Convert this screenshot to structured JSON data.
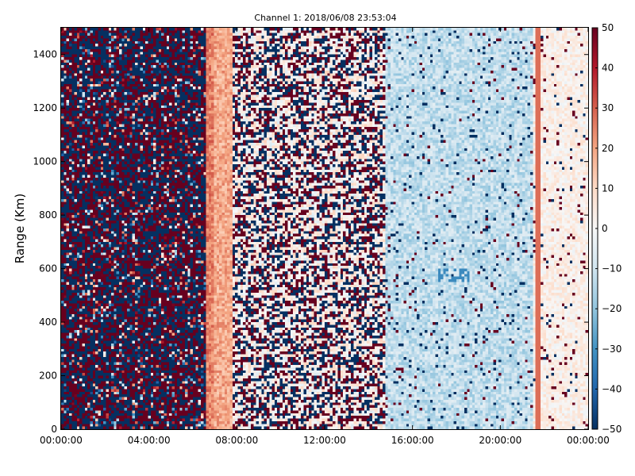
{
  "chart_data": {
    "type": "heatmap",
    "title": "Channel 1: 2018/06/08 23:53:04",
    "xlabel": "",
    "ylabel": "Range (Km)",
    "x_ticks": [
      "00:00:00",
      "04:00:00",
      "08:00:00",
      "12:00:00",
      "16:00:00",
      "20:00:00",
      "00:00:00"
    ],
    "x_range_hours": [
      0,
      24
    ],
    "y_ticks": [
      0,
      200,
      400,
      600,
      800,
      1000,
      1200,
      1400
    ],
    "ylim": [
      0,
      1500
    ],
    "colorbar": {
      "colormap": "RdBu_r",
      "range": [
        -50,
        50
      ],
      "ticks": [
        50,
        40,
        30,
        20,
        10,
        0,
        -10,
        -20,
        -30,
        -40,
        -50
      ],
      "tick_labels": [
        "50",
        "40",
        "30",
        "20",
        "10",
        "0",
        "−10",
        "−20",
        "−30",
        "−40",
        "−50"
      ]
    },
    "time_segments": [
      {
        "from_hour": 0.0,
        "to_hour": 6.6,
        "pattern": "random noise spanning full range -50 to 50"
      },
      {
        "from_hour": 6.6,
        "to_hour": 7.8,
        "pattern": "warm band, values about 10 to 25"
      },
      {
        "from_hour": 7.8,
        "to_hour": 14.8,
        "pattern": "near 0 with frequent extreme speckle"
      },
      {
        "from_hour": 14.8,
        "to_hour": 21.5,
        "pattern": "mostly -5 to -20, sparse speckle"
      },
      {
        "from_hour": 21.5,
        "to_hour": 24.0,
        "pattern": "weak positive values about 0 to 10 with sparse speckle"
      }
    ]
  }
}
